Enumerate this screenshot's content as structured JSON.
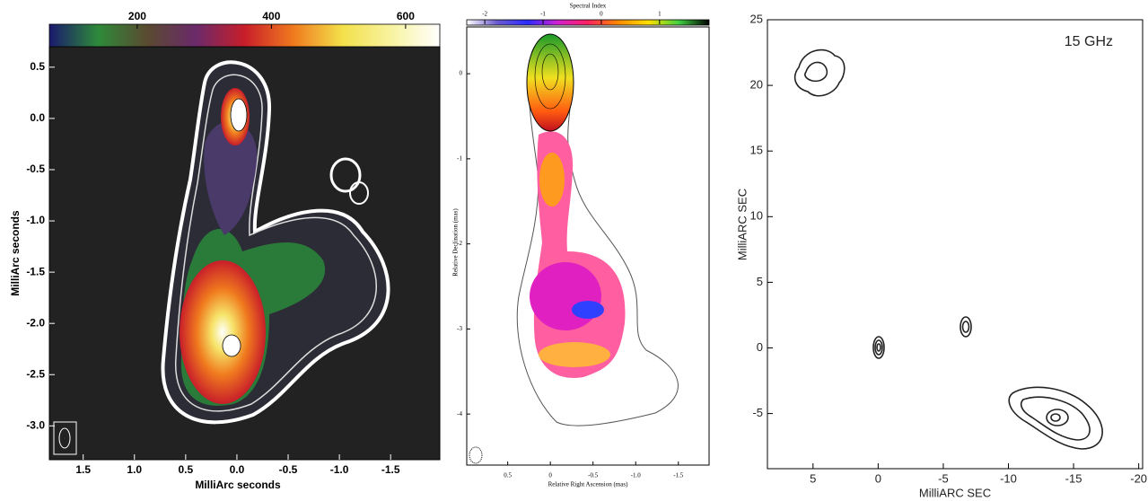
{
  "chart_data": [
    {
      "type": "contour",
      "xlabel": "MilliArc seconds",
      "ylabel": "MilliArc seconds",
      "xlim": [
        1.83,
        -1.98
      ],
      "ylim": [
        -3.33,
        0.7
      ],
      "xticks": [
        1.5,
        {
          "value": 1,
          "label": "1.0"
        },
        0.5,
        {
          "value": 0,
          "label": "0.0"
        },
        -0.5,
        {
          "value": -1,
          "label": "-1.0"
        },
        -1.5
      ],
      "yticks": [
        0.5,
        {
          "value": 0,
          "label": "0.0"
        },
        -0.5,
        {
          "value": -1,
          "label": "-1.0"
        },
        -1.5,
        {
          "value": -2,
          "label": "-2.0"
        },
        -2.5,
        {
          "value": -3,
          "label": "-3.0"
        }
      ],
      "colorbar": {
        "lim": [
          69,
          651
        ],
        "ticks": [
          200,
          400,
          600
        ],
        "colormap": [
          "#1a1a6e",
          "#2e8a3a",
          "#5a4a30",
          "#6a2a6a",
          "#c81e2a",
          "#f07a1e",
          "#f3e04a",
          "#f8f3a0",
          "#ffffff"
        ]
      }
    },
    {
      "type": "contour",
      "xlabel": "Relative Right Ascension (mas)",
      "ylabel": "Relative Declination (mas)",
      "xlim": [
        0.98,
        -1.86
      ],
      "ylim": [
        -4.6,
        0.55
      ],
      "xticks": [
        0.5,
        0,
        -0.5,
        {
          "value": -1,
          "label": "-1.0"
        },
        -1.5
      ],
      "yticks": [
        0,
        -1,
        -2,
        -3,
        -4
      ],
      "colorbar": {
        "title": "Spectral Index",
        "lim": [
          -2.31,
          1.85
        ],
        "ticks": [
          -2,
          -1,
          0,
          1
        ],
        "colormap": [
          "#ffffff",
          "#6a5acd",
          "#2b2bff",
          "#d020d0",
          "#ff2060",
          "#ff8a00",
          "#ffe000",
          "#40d040",
          "#000000"
        ]
      }
    },
    {
      "type": "contour",
      "xlabel": "MilliARC SEC",
      "ylabel": "MilliARC SEC",
      "annotation": "15 GHz",
      "xlim": [
        8.5,
        -20.3
      ],
      "ylim": [
        -9.2,
        25
      ],
      "xticks": [
        5,
        0,
        -5,
        -10,
        -15,
        -20
      ],
      "yticks": [
        25,
        20,
        15,
        10,
        5,
        0,
        -5
      ]
    }
  ]
}
